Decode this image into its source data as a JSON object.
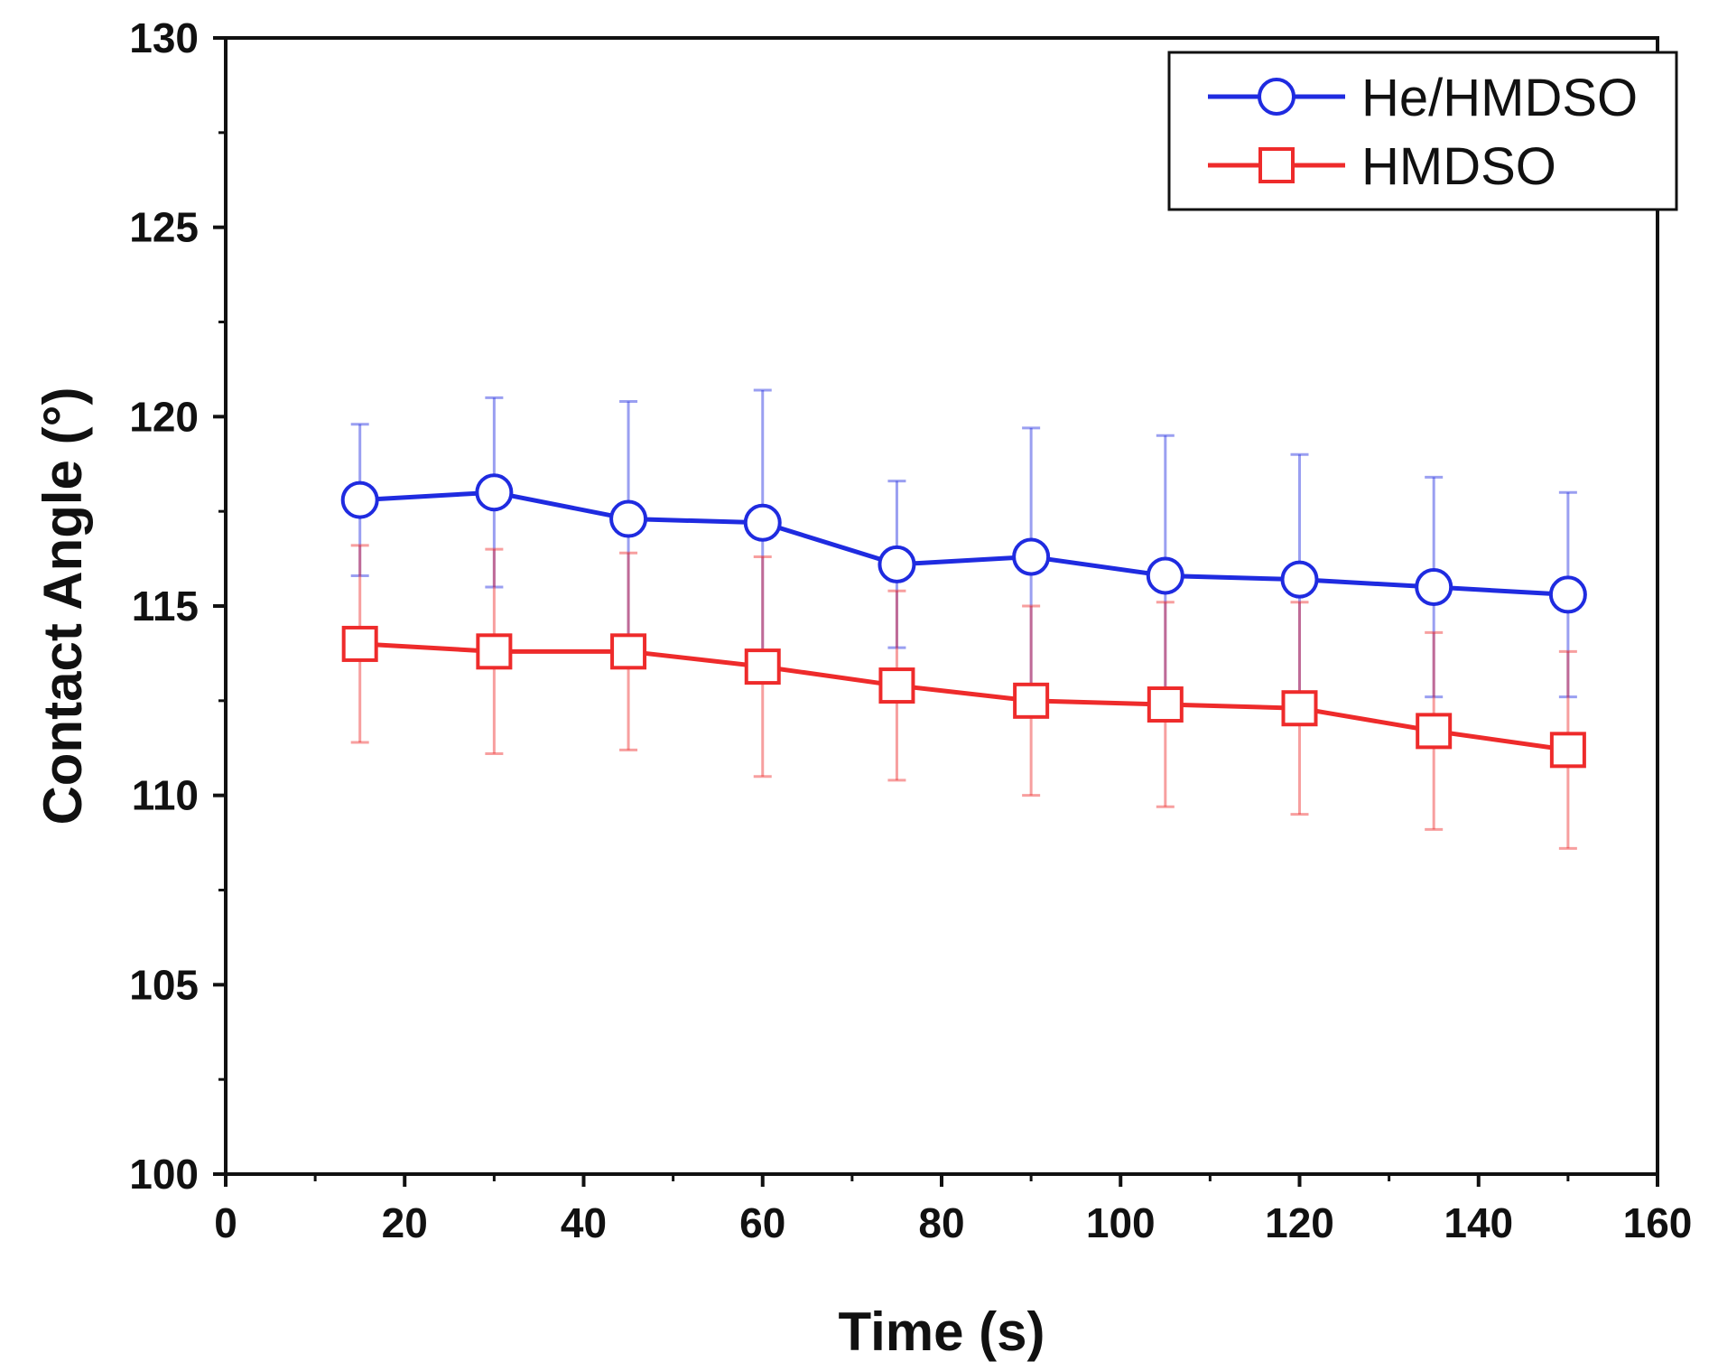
{
  "chart_data": {
    "type": "line",
    "title": "",
    "xlabel": "Time (s)",
    "ylabel": "Contact Angle (°)",
    "xlim": [
      0,
      160
    ],
    "ylim": [
      100,
      130
    ],
    "x_ticks": [
      0,
      20,
      40,
      60,
      80,
      100,
      120,
      140,
      160
    ],
    "y_ticks": [
      100,
      105,
      110,
      115,
      120,
      125,
      130
    ],
    "x_tick_labels": [
      "0",
      "20",
      "40",
      "60",
      "80",
      "100",
      "120",
      "140",
      "160"
    ],
    "y_tick_labels": [
      "100",
      "105",
      "110",
      "115",
      "120",
      "125",
      "130"
    ],
    "grid": false,
    "legend_position": "top-right",
    "x": [
      15,
      30,
      45,
      60,
      75,
      90,
      105,
      120,
      135,
      150
    ],
    "series": [
      {
        "name": "He/HMDSO",
        "color": "#1f2be0",
        "marker": "circle",
        "values": [
          117.8,
          118.0,
          117.3,
          117.2,
          116.1,
          116.3,
          115.8,
          115.7,
          115.5,
          115.3
        ],
        "error": [
          2.0,
          2.5,
          3.1,
          3.5,
          2.2,
          3.4,
          3.7,
          3.3,
          2.9,
          2.7
        ]
      },
      {
        "name": "HMDSO",
        "color": "#ee2b2b",
        "marker": "square",
        "values": [
          114.0,
          113.8,
          113.8,
          113.4,
          112.9,
          112.5,
          112.4,
          112.3,
          111.7,
          111.2
        ],
        "error": [
          2.6,
          2.7,
          2.6,
          2.9,
          2.5,
          2.5,
          2.7,
          2.8,
          2.6,
          2.6
        ]
      }
    ]
  }
}
